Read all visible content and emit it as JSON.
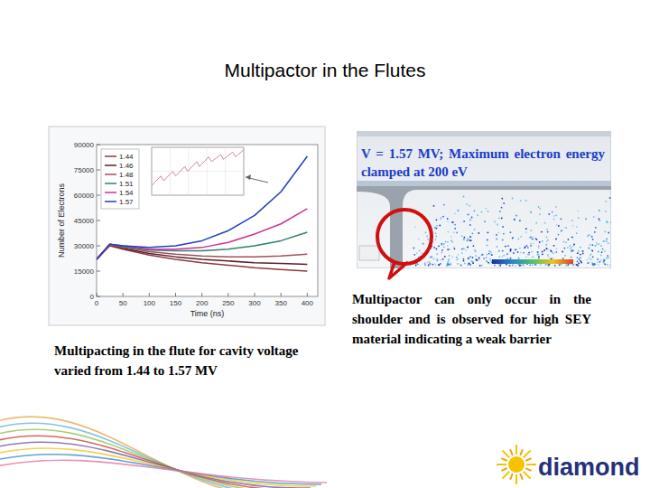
{
  "slide": {
    "title": "Multipactor in the Flutes",
    "caption": "Multipacting in the flute for cavity voltage varied from 1.44 to 1.57 MV",
    "image_label": "V = 1.57 MV; Maximum electron energy clamped at 200 eV",
    "note": "Multipactor can only occur in the shoulder and is observed for high SEY material indicating a weak barrier",
    "logo": "diamond"
  },
  "chart_data": [
    {
      "type": "line",
      "x_label": "Time (ns)",
      "y_label": "Number of Electrons",
      "x": [
        0,
        25,
        50,
        100,
        150,
        200,
        250,
        300,
        350,
        400
      ],
      "series": [
        {
          "name": "1.44",
          "color": "#8b3a3a",
          "values": [
            22000,
            30000,
            28000,
            24500,
            22000,
            20000,
            18500,
            17000,
            16000,
            15000
          ]
        },
        {
          "name": "1.46",
          "color": "#5a1f2a",
          "values": [
            22000,
            30500,
            28500,
            25500,
            23500,
            22000,
            21000,
            20000,
            19500,
            19000
          ]
        },
        {
          "name": "1.48",
          "color": "#a0525a",
          "values": [
            22000,
            30500,
            29000,
            26500,
            25000,
            24000,
            23500,
            23500,
            24000,
            25000
          ]
        },
        {
          "name": "1.51",
          "color": "#2f7f6f",
          "values": [
            22000,
            31000,
            29500,
            27500,
            27000,
            27000,
            28000,
            30000,
            33000,
            38000
          ]
        },
        {
          "name": "1.54",
          "color": "#d0309a",
          "values": [
            22000,
            31000,
            30000,
            28000,
            28000,
            29000,
            32000,
            37000,
            43000,
            52000
          ]
        },
        {
          "name": "1.57",
          "color": "#1f3fbf",
          "values": [
            22000,
            31000,
            30000,
            29000,
            30000,
            33000,
            39000,
            48000,
            62000,
            83000
          ]
        }
      ],
      "xlim": [
        0,
        420
      ],
      "ylim": [
        0,
        90000
      ],
      "xticks": [
        0,
        50,
        100,
        150,
        200,
        250,
        300,
        350,
        400
      ],
      "yticks": [
        0,
        15000,
        30000,
        45000,
        60000,
        75000,
        90000
      ],
      "grid": false,
      "legend": "top-left"
    },
    {
      "type": "line",
      "x": [
        0,
        1,
        1.3,
        2.3,
        2.6,
        3.6,
        3.9,
        4.9,
        5.2,
        6.2,
        6.5,
        7.5,
        7.8,
        8.8,
        9.1,
        10
      ],
      "series": [
        {
          "color": "#d08a9a",
          "values": [
            2,
            4,
            3,
            5,
            4,
            6,
            5,
            7,
            6,
            8,
            7,
            8.5,
            7.5,
            9,
            8,
            9.5
          ]
        }
      ],
      "xlim": [
        0,
        10
      ],
      "ylim": [
        0,
        10
      ],
      "xticks": [
        0,
        2,
        4,
        6,
        8,
        10
      ],
      "yticks": [
        0,
        5,
        10
      ],
      "grid": true,
      "tick_labels": false
    }
  ]
}
